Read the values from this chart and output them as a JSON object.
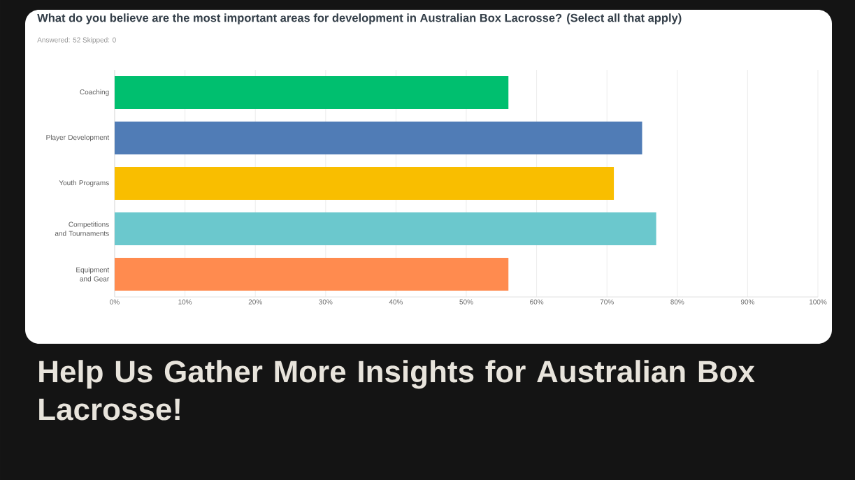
{
  "chart_data": {
    "type": "bar",
    "orientation": "horizontal",
    "title": "What do you believe are the most important areas for development in Australian Box Lacrosse? (Select all that apply)",
    "subtitle": "Answered: 52    Skipped: 0",
    "annotations": [
      "Help Us Gather More Insights for Australian Box Lacrosse!"
    ],
    "categories": [
      "Coaching",
      "Player Development",
      "Youth Programs",
      "Competitions and Tournaments",
      "Equipment and Gear"
    ],
    "values": [
      56,
      75,
      71,
      77,
      56
    ],
    "colors": [
      "#00bf6f",
      "#507cb6",
      "#f9be00",
      "#6bc8cd",
      "#ff8b4f"
    ],
    "xlim": [
      0,
      100
    ],
    "xticks": [
      {
        "value": 0,
        "label": "0%"
      },
      {
        "value": 10,
        "label": "10%"
      },
      {
        "value": 20,
        "label": "20%"
      },
      {
        "value": 30,
        "label": "30%"
      },
      {
        "value": 40,
        "label": "40%"
      },
      {
        "value": 50,
        "label": "50%"
      },
      {
        "value": 60,
        "label": "60%"
      },
      {
        "value": 70,
        "label": "70%"
      },
      {
        "value": 80,
        "label": "80%"
      },
      {
        "value": 90,
        "label": "90%"
      },
      {
        "value": 100,
        "label": "100%"
      }
    ],
    "grid": "x"
  }
}
